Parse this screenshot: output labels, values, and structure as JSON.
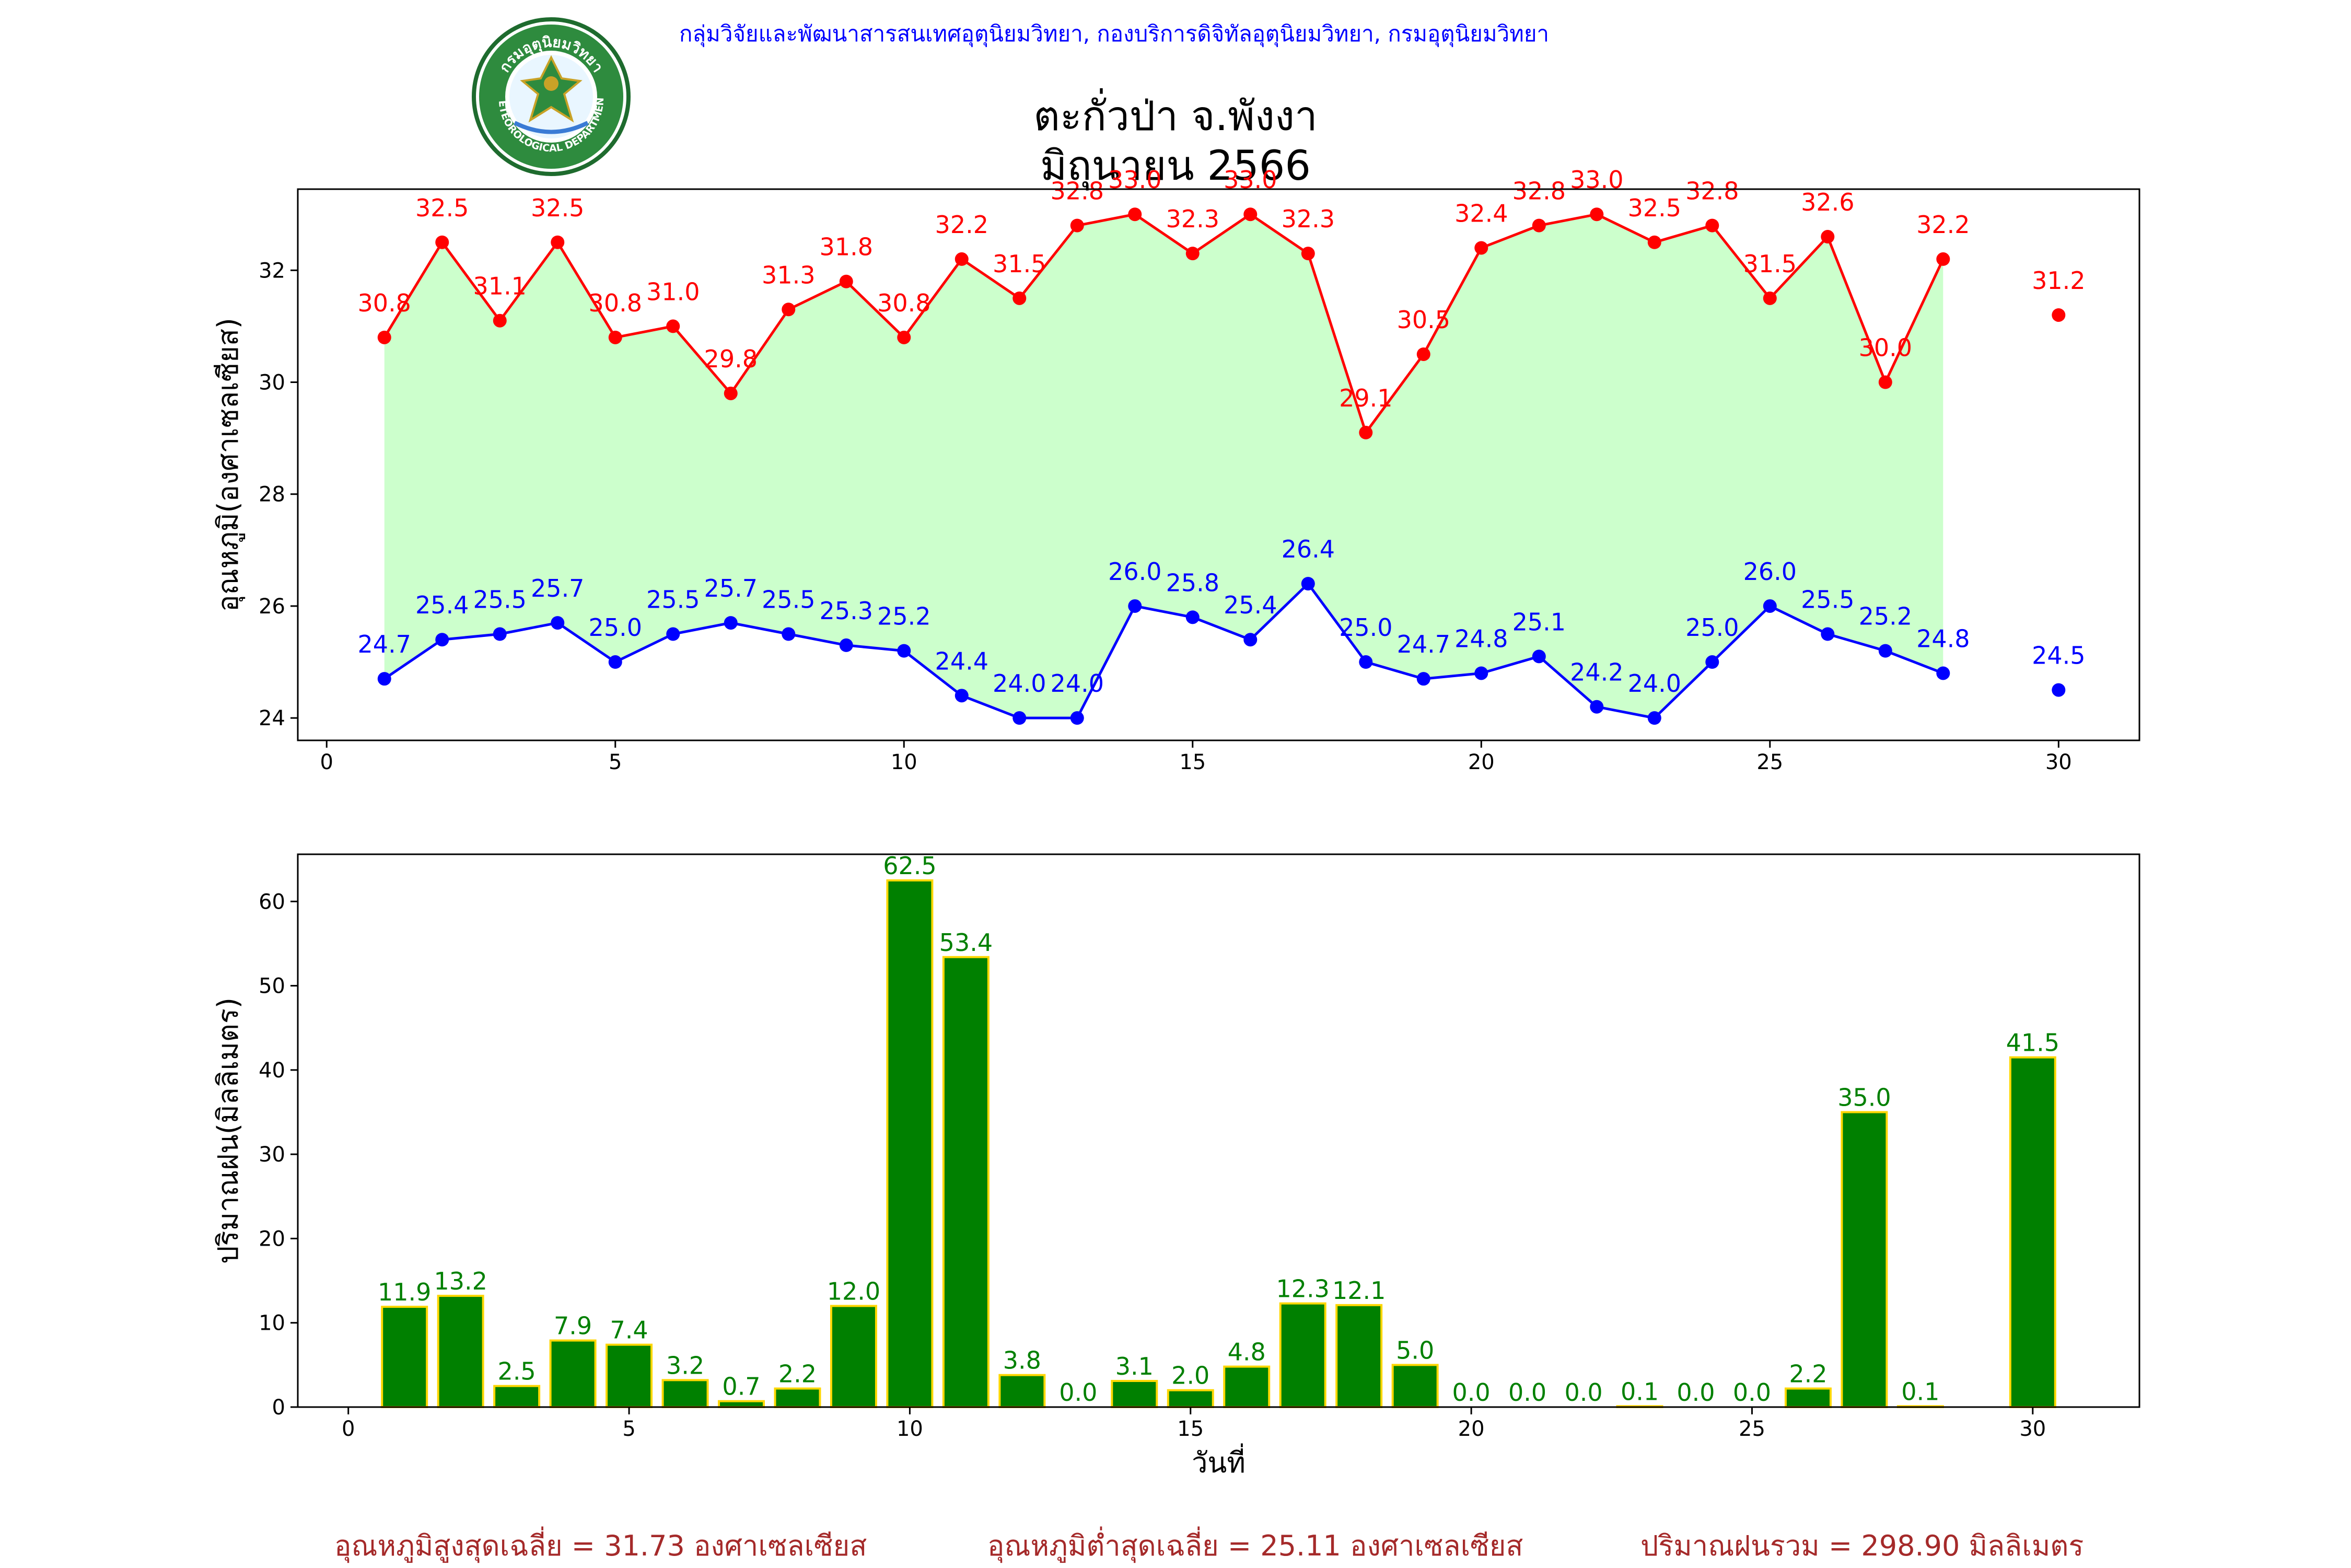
{
  "header": {
    "organization": "กลุ่มวิจัยและพัฒนาสารสนเทศอุตุนิยมวิทยา, กองบริการดิจิทัลอุตุนิยมวิทยา, กรมอุตุนิยมวิทยา",
    "logo_text_top": "กรมอุตุนิยมวิทยา",
    "logo_text_bottom": "METEOROLOGICAL DEPARTMENT"
  },
  "title": {
    "line1": "ตะกั่วป่า จ.พังงา",
    "line2": "มิถุนายน 2566"
  },
  "colors": {
    "max": "#ff0000",
    "min": "#0000ff",
    "fill": "#ccffcc",
    "bar": "#008000",
    "bar_edge": "#ffd700",
    "bar_label": "#008000",
    "footer": "#a52a2a",
    "header": "#0000ff"
  },
  "chart_data": [
    {
      "type": "line",
      "ylabel": "อุณหภูมิ(องศาเซลเซียส)",
      "xlim": [
        -0.5,
        31.4
      ],
      "ylim": [
        23.6,
        33.45
      ],
      "xticks": [
        0,
        5,
        10,
        15,
        20,
        25,
        30
      ],
      "yticks": [
        24,
        26,
        28,
        30,
        32
      ],
      "fill_between": true,
      "series": [
        {
          "x": [
            1,
            2,
            3,
            4,
            5,
            6,
            7,
            8,
            9,
            10,
            11,
            12,
            13,
            14,
            15,
            16,
            17,
            18,
            19,
            20,
            21,
            22,
            23,
            24,
            25,
            26,
            27,
            28,
            30
          ],
          "values": [
            30.8,
            32.5,
            31.1,
            32.5,
            30.8,
            31.0,
            29.8,
            31.3,
            31.8,
            30.8,
            32.2,
            31.5,
            32.8,
            33.0,
            32.3,
            33.0,
            32.3,
            29.1,
            30.5,
            32.4,
            32.8,
            33.0,
            32.5,
            32.8,
            31.5,
            32.6,
            30.0,
            32.2,
            31.2
          ],
          "labels": [
            "30.8",
            "32.5",
            "31.1",
            "32.5",
            "30.8",
            "31.0",
            "29.8",
            "31.3",
            "31.8",
            "30.8",
            "32.2",
            "31.5",
            "32.8",
            "33.0",
            "32.3",
            "33.0",
            "32.3",
            "29.1",
            "30.5",
            "32.4",
            "32.8",
            "33.0",
            "32.5",
            "32.8",
            "31.5",
            "32.6",
            "30.0",
            "32.2",
            "31.2"
          ]
        },
        {
          "x": [
            1,
            2,
            3,
            4,
            5,
            6,
            7,
            8,
            9,
            10,
            11,
            12,
            13,
            14,
            15,
            16,
            17,
            18,
            19,
            20,
            21,
            22,
            23,
            24,
            25,
            26,
            27,
            28,
            30
          ],
          "values": [
            24.7,
            25.4,
            25.5,
            25.7,
            25.0,
            25.5,
            25.7,
            25.5,
            25.3,
            25.2,
            24.4,
            24.0,
            24.0,
            26.0,
            25.8,
            25.4,
            26.4,
            25.0,
            24.7,
            24.8,
            25.1,
            24.2,
            24.0,
            25.0,
            26.0,
            25.5,
            25.2,
            24.8,
            24.5
          ],
          "labels": [
            "24.7",
            "25.4",
            "25.5",
            "25.7",
            "25.0",
            "25.5",
            "25.7",
            "25.5",
            "25.3",
            "25.2",
            "24.4",
            "24.0",
            "24.0",
            "26.0",
            "25.8",
            "25.4",
            "26.4",
            "25.0",
            "24.7",
            "24.8",
            "25.1",
            "24.2",
            "24.0",
            "25.0",
            "26.0",
            "25.5",
            "25.2",
            "24.8",
            "24.5"
          ]
        }
      ]
    },
    {
      "type": "bar",
      "xlabel": "วันที่",
      "ylabel": "ปริมาณฝน(มิลลิเมตร)",
      "xlim": [
        -0.9,
        31.9
      ],
      "ylim": [
        0,
        65.6
      ],
      "xticks": [
        0,
        5,
        10,
        15,
        20,
        25,
        30
      ],
      "yticks": [
        0,
        10,
        20,
        30,
        40,
        50,
        60
      ],
      "x": [
        1,
        2,
        3,
        4,
        5,
        6,
        7,
        8,
        9,
        10,
        11,
        12,
        13,
        14,
        15,
        16,
        17,
        18,
        19,
        20,
        21,
        22,
        23,
        24,
        25,
        26,
        27,
        28,
        30
      ],
      "values": [
        11.9,
        13.2,
        2.5,
        7.9,
        7.4,
        3.2,
        0.7,
        2.2,
        12.0,
        62.5,
        53.4,
        3.8,
        0.0,
        3.1,
        2.0,
        4.8,
        12.3,
        12.1,
        5.0,
        0.0,
        0.0,
        0.0,
        0.1,
        0.0,
        0.0,
        2.2,
        35.0,
        0.1,
        41.5
      ],
      "labels": [
        "11.9",
        "13.2",
        "2.5",
        "7.9",
        "7.4",
        "3.2",
        "0.7",
        "2.2",
        "12.0",
        "62.5",
        "53.4",
        "3.8",
        "0.0",
        "3.1",
        "2.0",
        "4.8",
        "12.3",
        "12.1",
        "5.0",
        "0.0",
        "0.0",
        "0.0",
        "0.1",
        "0.0",
        "0.0",
        "2.2",
        "35.0",
        "0.1",
        "41.5"
      ]
    }
  ],
  "footer": {
    "avg_max": "อุณหภูมิสูงสุดเฉลี่ย = 31.73 องศาเซลเซียส",
    "avg_min": "อุณหภูมิต่ำสุดเฉลี่ย = 25.11 องศาเซลเซียส",
    "total_rain": "ปริมาณฝนรวม = 298.90 มิลลิเมตร"
  }
}
